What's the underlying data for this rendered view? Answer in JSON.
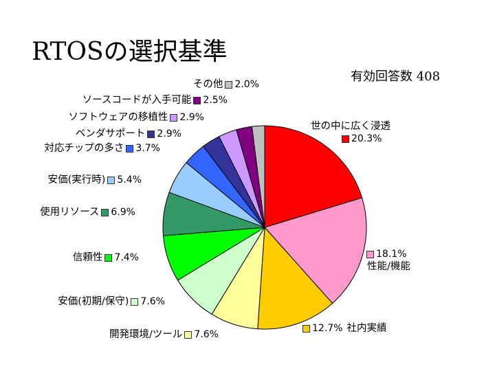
{
  "title": "RTOSの選択基準",
  "responses": {
    "label": "有効回答数",
    "count": "408"
  },
  "chart_data": {
    "type": "pie",
    "title": "RTOSの選択基準",
    "slices": [
      {
        "label": "世の中に広く浸透",
        "value": 20.3,
        "display": "20.3%",
        "color": "#ff0000"
      },
      {
        "label": "性能/機能",
        "value": 18.1,
        "display": "18.1%",
        "color": "#ff99cc"
      },
      {
        "label": "社内実績",
        "value": 12.7,
        "display": "12.7%",
        "color": "#ffcc00"
      },
      {
        "label": "開発環境/ツール",
        "value": 7.6,
        "display": "7.6%",
        "color": "#ffff99"
      },
      {
        "label": "安価(初期/保守)",
        "value": 7.6,
        "display": "7.6%",
        "color": "#ccffcc"
      },
      {
        "label": "信頼性",
        "value": 7.4,
        "display": "7.4%",
        "color": "#00ff00"
      },
      {
        "label": "使用リソース",
        "value": 6.9,
        "display": "6.9%",
        "color": "#339966"
      },
      {
        "label": "安価(実行時)",
        "value": 5.4,
        "display": "5.4%",
        "color": "#99ccff"
      },
      {
        "label": "対応チップの多さ",
        "value": 3.7,
        "display": "3.7%",
        "color": "#3366ff"
      },
      {
        "label": "ベンダサポート",
        "value": 2.9,
        "display": "2.9%",
        "color": "#333399"
      },
      {
        "label": "ソフトウェアの移植性",
        "value": 2.9,
        "display": "2.9%",
        "color": "#cc99ff"
      },
      {
        "label": "ソースコードが入手可能",
        "value": 2.5,
        "display": "2.5%",
        "color": "#800080"
      },
      {
        "label": "その他",
        "value": 2.0,
        "display": "2.0%",
        "color": "#c0c0c0"
      }
    ]
  }
}
